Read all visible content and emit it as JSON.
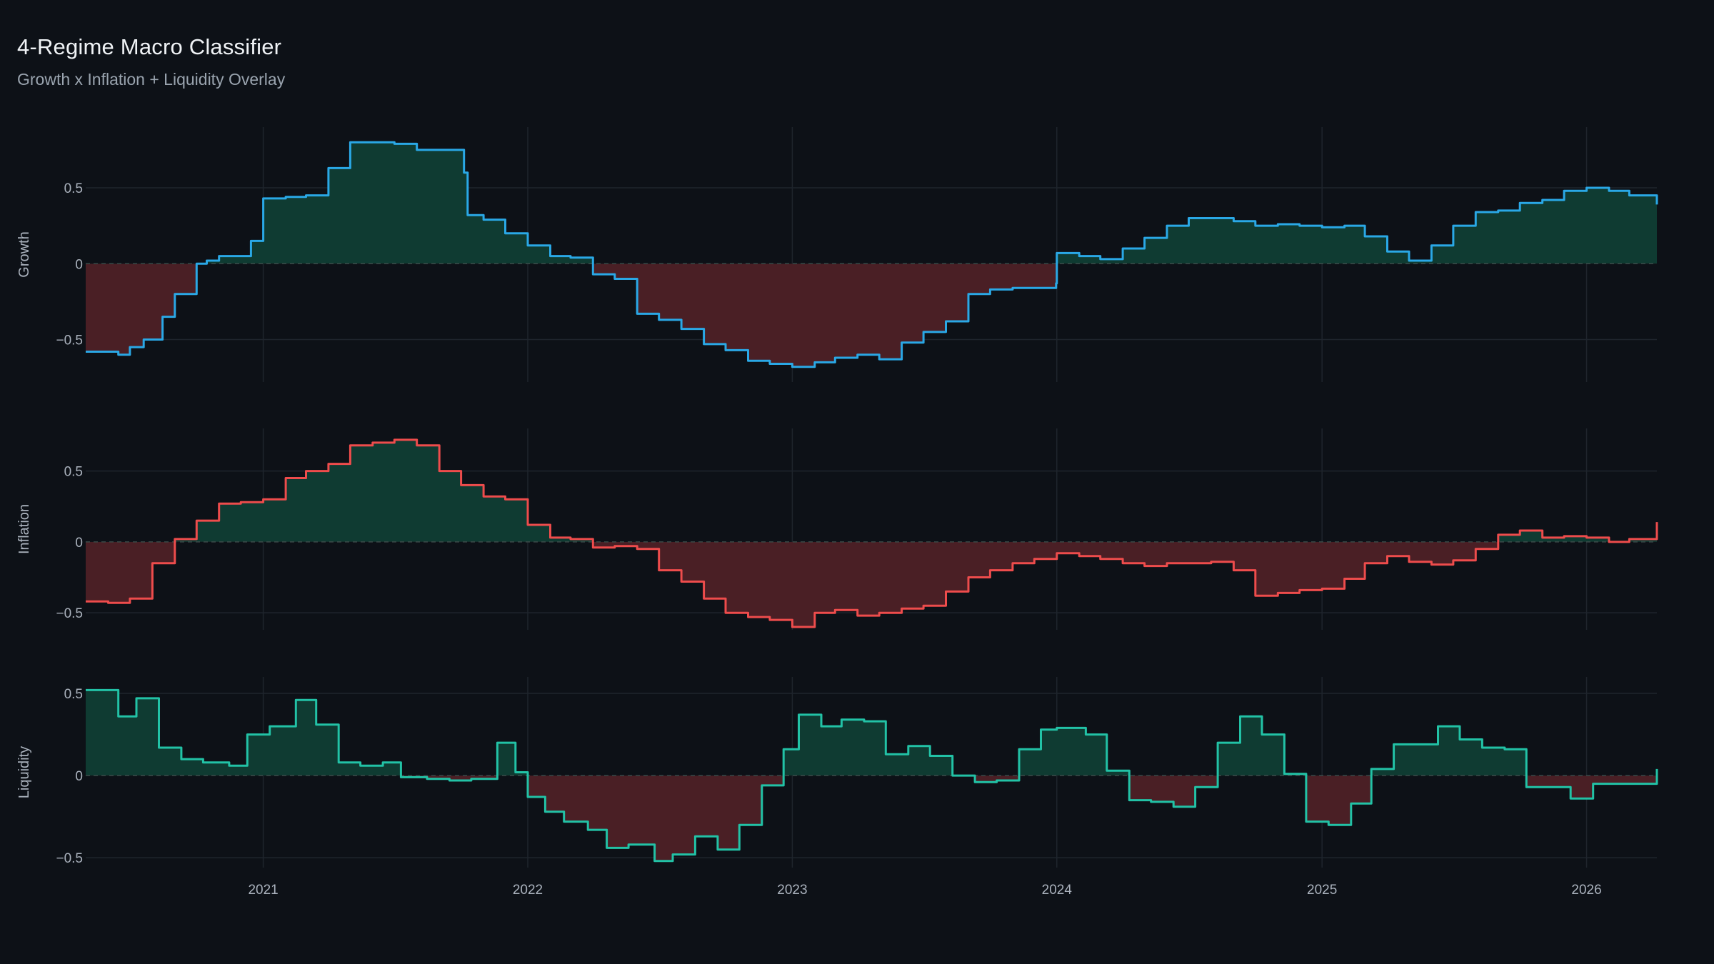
{
  "title": "4-Regime Macro Classifier",
  "subtitle": "Growth x Inflation + Liquidity Overlay",
  "colors": {
    "background": "#0d1117",
    "grid": "#1f252d",
    "positive_fill": "#0f3b32",
    "negative_fill": "#4a1f25",
    "growth_line": "#2aa8e6",
    "inflation_line": "#ee4c4c",
    "liquidity_line": "#22c2a6"
  },
  "chart_data": [
    {
      "type": "area",
      "ylabel": "Growth",
      "ylim": [
        -0.78,
        0.9
      ],
      "yticks": [
        0.5,
        0,
        -0.5
      ],
      "ytick_labels": [
        "0.5",
        "0",
        "−0.5"
      ],
      "zero_line": "dashed",
      "x": [
        "2020-05-01",
        "2020-06-15",
        "2020-07-01",
        "2020-07-20",
        "2020-08-15",
        "2020-09-01",
        "2020-10-01",
        "2020-10-15",
        "2020-11-01",
        "2020-12-15",
        "2021-01-01",
        "2021-02-01",
        "2021-03-01",
        "2021-04-01",
        "2021-05-01",
        "2021-06-01",
        "2021-07-01",
        "2021-08-01",
        "2021-10-05",
        "2021-10-10",
        "2021-11-01",
        "2021-12-01",
        "2022-01-01",
        "2022-02-01",
        "2022-03-01",
        "2022-04-01",
        "2022-05-01",
        "2022-06-01",
        "2022-07-01",
        "2022-08-01",
        "2022-09-01",
        "2022-10-01",
        "2022-11-01",
        "2022-12-01",
        "2023-01-01",
        "2023-02-01",
        "2023-03-01",
        "2023-04-01",
        "2023-05-01",
        "2023-06-01",
        "2023-07-01",
        "2023-08-01",
        "2023-09-01",
        "2023-10-01",
        "2023-11-01",
        "2023-12-31",
        "2024-01-01",
        "2024-02-01",
        "2024-03-01",
        "2024-04-01",
        "2024-05-01",
        "2024-06-01",
        "2024-07-01",
        "2024-08-01",
        "2024-09-01",
        "2024-10-01",
        "2024-11-01",
        "2024-12-01",
        "2025-01-01",
        "2025-02-01",
        "2025-03-01",
        "2025-04-01",
        "2025-05-01",
        "2025-06-01",
        "2025-07-01",
        "2025-08-01",
        "2025-09-01",
        "2025-10-01",
        "2025-11-01",
        "2025-12-01",
        "2026-01-01",
        "2026-02-01",
        "2026-03-01",
        "2026-04-08"
      ],
      "values": [
        -0.58,
        -0.6,
        -0.55,
        -0.5,
        -0.35,
        -0.2,
        0.0,
        0.02,
        0.05,
        0.15,
        0.43,
        0.44,
        0.45,
        0.63,
        0.8,
        0.8,
        0.79,
        0.75,
        0.6,
        0.32,
        0.29,
        0.2,
        0.12,
        0.05,
        0.04,
        -0.07,
        -0.1,
        -0.33,
        -0.37,
        -0.43,
        -0.53,
        -0.57,
        -0.64,
        -0.66,
        -0.68,
        -0.65,
        -0.62,
        -0.6,
        -0.63,
        -0.52,
        -0.45,
        -0.38,
        -0.2,
        -0.17,
        -0.16,
        -0.13,
        0.07,
        0.05,
        0.03,
        0.1,
        0.17,
        0.25,
        0.3,
        0.3,
        0.28,
        0.25,
        0.26,
        0.25,
        0.24,
        0.25,
        0.18,
        0.08,
        0.02,
        0.12,
        0.25,
        0.34,
        0.35,
        0.4,
        0.42,
        0.48,
        0.5,
        0.48,
        0.45,
        0.39
      ],
      "line_color": "#2aa8e6"
    },
    {
      "type": "area",
      "ylabel": "Inflation",
      "ylim": [
        -0.62,
        0.8
      ],
      "yticks": [
        0.5,
        0,
        -0.5
      ],
      "ytick_labels": [
        "0.5",
        "0",
        "−0.5"
      ],
      "zero_line": "dashed",
      "x": [
        "2020-05-01",
        "2020-06-01",
        "2020-07-01",
        "2020-08-01",
        "2020-09-01",
        "2020-10-01",
        "2020-11-01",
        "2020-12-01",
        "2021-01-01",
        "2021-02-01",
        "2021-03-01",
        "2021-04-01",
        "2021-05-01",
        "2021-06-01",
        "2021-07-01",
        "2021-08-01",
        "2021-09-01",
        "2021-10-01",
        "2021-11-01",
        "2021-12-01",
        "2022-01-01",
        "2022-02-01",
        "2022-03-01",
        "2022-04-01",
        "2022-05-01",
        "2022-06-01",
        "2022-07-01",
        "2022-08-01",
        "2022-09-01",
        "2022-10-01",
        "2022-11-01",
        "2022-12-01",
        "2023-01-01",
        "2023-02-01",
        "2023-03-01",
        "2023-04-01",
        "2023-05-01",
        "2023-06-01",
        "2023-07-01",
        "2023-08-01",
        "2023-09-01",
        "2023-10-01",
        "2023-11-01",
        "2023-12-01",
        "2024-01-01",
        "2024-02-01",
        "2024-03-01",
        "2024-04-01",
        "2024-05-01",
        "2024-06-01",
        "2024-07-01",
        "2024-08-01",
        "2024-09-01",
        "2024-10-01",
        "2024-11-01",
        "2024-12-01",
        "2025-01-01",
        "2025-02-01",
        "2025-03-01",
        "2025-04-01",
        "2025-05-01",
        "2025-06-01",
        "2025-07-01",
        "2025-08-01",
        "2025-09-01",
        "2025-10-01",
        "2025-11-01",
        "2025-12-01",
        "2026-01-01",
        "2026-02-01",
        "2026-03-01",
        "2026-04-08"
      ],
      "values": [
        -0.42,
        -0.43,
        -0.4,
        -0.15,
        0.02,
        0.15,
        0.27,
        0.28,
        0.3,
        0.45,
        0.5,
        0.55,
        0.68,
        0.7,
        0.72,
        0.68,
        0.5,
        0.4,
        0.32,
        0.3,
        0.12,
        0.03,
        0.02,
        -0.04,
        -0.03,
        -0.05,
        -0.2,
        -0.28,
        -0.4,
        -0.5,
        -0.53,
        -0.55,
        -0.6,
        -0.5,
        -0.48,
        -0.52,
        -0.5,
        -0.47,
        -0.45,
        -0.35,
        -0.25,
        -0.2,
        -0.15,
        -0.12,
        -0.08,
        -0.1,
        -0.12,
        -0.15,
        -0.17,
        -0.15,
        -0.15,
        -0.14,
        -0.2,
        -0.38,
        -0.36,
        -0.34,
        -0.33,
        -0.26,
        -0.15,
        -0.1,
        -0.14,
        -0.16,
        -0.13,
        -0.05,
        0.05,
        0.08,
        0.03,
        0.04,
        0.03,
        0.0,
        0.02,
        0.14
      ],
      "line_color": "#ee4c4c"
    },
    {
      "type": "area",
      "ylabel": "Liquidity",
      "ylim": [
        -0.56,
        0.6
      ],
      "yticks": [
        0.5,
        0,
        -0.5
      ],
      "ytick_labels": [
        "0.5",
        "0",
        "−0.5"
      ],
      "xticks": [
        "2021-01-01",
        "2022-01-01",
        "2023-01-01",
        "2024-01-01",
        "2025-01-01",
        "2026-01-01"
      ],
      "xtick_labels": [
        "2021",
        "2022",
        "2023",
        "2024",
        "2025",
        "2026"
      ],
      "zero_line": "dashed",
      "x": [
        "2020-05-01",
        "2020-06-15",
        "2020-07-10",
        "2020-08-10",
        "2020-09-10",
        "2020-10-10",
        "2020-11-15",
        "2020-12-10",
        "2021-01-10",
        "2021-02-15",
        "2021-03-15",
        "2021-04-15",
        "2021-05-15",
        "2021-06-15",
        "2021-07-10",
        "2021-08-15",
        "2021-09-15",
        "2021-10-15",
        "2021-11-20",
        "2021-12-15",
        "2022-01-01",
        "2022-01-25",
        "2022-02-20",
        "2022-03-25",
        "2022-04-20",
        "2022-05-20",
        "2022-06-25",
        "2022-07-20",
        "2022-08-20",
        "2022-09-20",
        "2022-10-20",
        "2022-11-20",
        "2022-12-20",
        "2023-01-10",
        "2023-02-10",
        "2023-03-10",
        "2023-04-10",
        "2023-05-10",
        "2023-06-10",
        "2023-07-10",
        "2023-08-10",
        "2023-09-10",
        "2023-10-10",
        "2023-11-10",
        "2023-12-10",
        "2024-01-01",
        "2024-02-10",
        "2024-03-10",
        "2024-04-10",
        "2024-05-10",
        "2024-06-10",
        "2024-07-10",
        "2024-08-10",
        "2024-09-10",
        "2024-10-10",
        "2024-11-10",
        "2024-12-10",
        "2025-01-10",
        "2025-02-10",
        "2025-03-10",
        "2025-04-10",
        "2025-05-10",
        "2025-06-10",
        "2025-07-10",
        "2025-08-10",
        "2025-09-10",
        "2025-10-10",
        "2025-11-10",
        "2025-12-10",
        "2026-01-10",
        "2026-02-10",
        "2026-03-10",
        "2026-04-08"
      ],
      "values": [
        0.52,
        0.36,
        0.47,
        0.17,
        0.1,
        0.08,
        0.06,
        0.25,
        0.3,
        0.46,
        0.31,
        0.08,
        0.06,
        0.08,
        -0.01,
        -0.02,
        -0.03,
        -0.02,
        0.2,
        0.02,
        -0.13,
        -0.22,
        -0.28,
        -0.33,
        -0.44,
        -0.42,
        -0.52,
        -0.48,
        -0.37,
        -0.45,
        -0.3,
        -0.06,
        0.16,
        0.37,
        0.3,
        0.34,
        0.33,
        0.13,
        0.18,
        0.12,
        0.0,
        -0.04,
        -0.03,
        0.16,
        0.28,
        0.29,
        0.25,
        0.03,
        -0.15,
        -0.16,
        -0.19,
        -0.07,
        0.2,
        0.36,
        0.25,
        0.01,
        -0.28,
        -0.3,
        -0.17,
        0.04,
        0.19,
        0.19,
        0.3,
        0.22,
        0.17,
        0.16,
        -0.07,
        -0.07,
        -0.14,
        -0.05,
        -0.05,
        -0.05,
        0.04
      ],
      "line_color": "#22c2a6"
    }
  ]
}
